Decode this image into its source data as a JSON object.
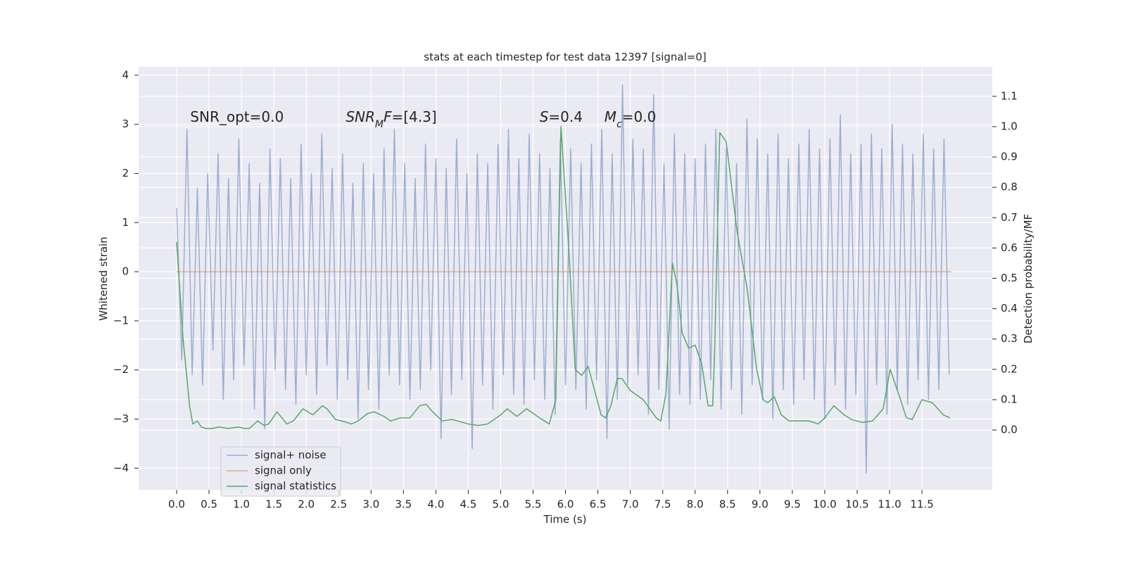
{
  "chart_data": {
    "type": "line",
    "title": "stats at each timestep for test data 12397 [signal=0]",
    "xlabel": "Time (s)",
    "ylabel": "Whitened strain",
    "y2label": "Detection probability/MF",
    "xlim": [
      -0.586,
      12.585
    ],
    "ylim": [
      -4.44,
      4.17
    ],
    "y2lim": [
      -0.197,
      1.197
    ],
    "xticks": [
      {
        "value": 0,
        "label": "0.0"
      },
      0.5,
      {
        "value": 1,
        "label": "1.0"
      },
      1.5,
      {
        "value": 2,
        "label": "2.0"
      },
      2.5,
      {
        "value": 3,
        "label": "3.0"
      },
      3.5,
      {
        "value": 4,
        "label": "4.0"
      },
      4.5,
      {
        "value": 5,
        "label": "5.0"
      },
      5.5,
      {
        "value": 6,
        "label": "6.0"
      },
      6.5,
      {
        "value": 7,
        "label": "7.0"
      },
      7.5,
      {
        "value": 8,
        "label": "8.0"
      },
      8.5,
      {
        "value": 9,
        "label": "9.0"
      },
      9.5,
      {
        "value": 10,
        "label": "10.0"
      },
      10.5,
      {
        "value": 11,
        "label": "11.0"
      },
      11.5
    ],
    "yticks": [
      {
        "value": -4,
        "label": "−4"
      },
      {
        "value": -3,
        "label": "−3"
      },
      {
        "value": -2,
        "label": "−2"
      },
      {
        "value": -1,
        "label": "−1"
      },
      0,
      1,
      2,
      3,
      4
    ],
    "y2ticks": [
      {
        "value": 0,
        "label": "0.0"
      },
      0.1,
      0.2,
      0.3,
      0.4,
      0.5,
      0.6,
      0.7,
      0.8,
      0.9,
      {
        "value": 1,
        "label": "1.0"
      },
      1.1
    ],
    "grid": true,
    "legend": "lower left",
    "annotations": [
      {
        "x": 0.21,
        "y": 3.05,
        "parts": [
          {
            "text": "SNR_opt=0.0"
          }
        ]
      },
      {
        "x": 2.61,
        "y": 3.05,
        "parts": [
          {
            "text": "SNR",
            "italic": true
          },
          {
            "text": "M",
            "italic": true,
            "sub": true
          },
          {
            "text": "F",
            "italic": true
          },
          {
            "text": "=[4.3]"
          }
        ]
      },
      {
        "x": 5.6,
        "y": 3.05,
        "parts": [
          {
            "text": "S",
            "italic": true
          },
          {
            "text": "=0.4"
          }
        ]
      },
      {
        "x": 6.6,
        "y": 3.05,
        "parts": [
          {
            "text": "M",
            "italic": true
          },
          {
            "text": "c",
            "italic": true,
            "sub": true
          },
          {
            "text": "=0.0"
          }
        ]
      }
    ],
    "series": [
      {
        "name": "signal+ noise",
        "color": "#4c72b0",
        "alpha": 0.5,
        "axis": "y",
        "x": [
          0,
          0.08,
          0.16,
          0.24,
          0.32,
          0.4,
          0.48,
          0.56,
          0.64,
          0.72,
          0.8,
          0.88,
          0.96,
          1.04,
          1.12,
          1.2,
          1.28,
          1.36,
          1.44,
          1.52,
          1.6,
          1.68,
          1.76,
          1.84,
          1.92,
          2,
          2.08,
          2.16,
          2.24,
          2.32,
          2.4,
          2.48,
          2.56,
          2.64,
          2.72,
          2.8,
          2.88,
          2.96,
          3.04,
          3.12,
          3.2,
          3.28,
          3.36,
          3.44,
          3.52,
          3.6,
          3.68,
          3.76,
          3.84,
          3.92,
          4,
          4.08,
          4.16,
          4.24,
          4.32,
          4.4,
          4.48,
          4.56,
          4.64,
          4.72,
          4.8,
          4.88,
          4.96,
          5.04,
          5.12,
          5.2,
          5.28,
          5.36,
          5.44,
          5.52,
          5.6,
          5.68,
          5.76,
          5.84,
          5.92,
          6,
          6.08,
          6.16,
          6.24,
          6.32,
          6.4,
          6.48,
          6.56,
          6.64,
          6.72,
          6.8,
          6.88,
          6.96,
          7.04,
          7.12,
          7.2,
          7.28,
          7.36,
          7.44,
          7.52,
          7.6,
          7.68,
          7.76,
          7.84,
          7.92,
          8,
          8.08,
          8.16,
          8.24,
          8.32,
          8.4,
          8.48,
          8.56,
          8.64,
          8.72,
          8.8,
          8.88,
          8.96,
          9.04,
          9.12,
          9.2,
          9.28,
          9.36,
          9.44,
          9.52,
          9.6,
          9.68,
          9.76,
          9.84,
          9.92,
          10,
          10.08,
          10.16,
          10.24,
          10.32,
          10.4,
          10.48,
          10.56,
          10.64,
          10.72,
          10.8,
          10.88,
          10.96,
          11.04,
          11.12,
          11.2,
          11.28,
          11.36,
          11.44,
          11.52,
          11.6,
          11.68,
          11.76,
          11.84,
          11.92
        ],
        "values": [
          1.3,
          -1.8,
          2.9,
          -2.1,
          1.7,
          -2.3,
          2.0,
          -1.6,
          2.4,
          -2.6,
          1.9,
          -2.2,
          2.7,
          -1.9,
          2.2,
          -2.8,
          1.8,
          -3.2,
          2.5,
          -2.0,
          2.3,
          -2.4,
          1.9,
          -2.7,
          2.6,
          -2.1,
          2.0,
          -2.5,
          2.8,
          -1.9,
          2.1,
          -2.6,
          2.4,
          -2.2,
          1.8,
          -3.0,
          2.2,
          -2.4,
          2.0,
          -2.8,
          2.5,
          -2.1,
          2.9,
          -2.3,
          2.2,
          -2.6,
          1.9,
          -2.4,
          2.6,
          -2.0,
          2.3,
          -3.4,
          2.1,
          -2.5,
          2.7,
          -2.2,
          2.0,
          -3.6,
          2.4,
          -2.3,
          2.2,
          -2.8,
          2.6,
          -2.1,
          2.9,
          -2.5,
          2.3,
          -2.7,
          2.8,
          -2.2,
          2.4,
          -2.6,
          2.1,
          -2.9,
          2.7,
          -2.3,
          2.5,
          -2.4,
          2.2,
          -2.8,
          2.6,
          -2.2,
          2.9,
          -3.4,
          2.4,
          -2.6,
          3.8,
          -2.3,
          2.7,
          -2.1,
          2.5,
          -2.9,
          3.6,
          -2.4,
          2.2,
          -3.2,
          2.8,
          -2.5,
          2.4,
          -2.7,
          2.3,
          -2.6,
          2.6,
          -2.2,
          2.9,
          -2.8,
          2.5,
          -2.4,
          2.2,
          -2.9,
          3.1,
          -2.3,
          2.7,
          -2.6,
          2.4,
          -3.0,
          2.8,
          -2.4,
          2.3,
          -2.7,
          2.6,
          -2.2,
          2.9,
          -2.6,
          2.5,
          -3.0,
          2.7,
          -2.3,
          3.2,
          -2.8,
          2.4,
          -2.5,
          2.6,
          -4.1,
          2.8,
          -2.3,
          2.5,
          -2.9,
          3.0,
          -2.4,
          2.6,
          -2.7,
          2.4,
          -2.2,
          2.8,
          -2.6,
          2.5,
          -2.4,
          2.7,
          -2.1
        ]
      },
      {
        "name": "signal only",
        "color": "#dd8452",
        "alpha": 0.6,
        "axis": "y",
        "x": [
          0,
          11.95
        ],
        "values": [
          0,
          0
        ]
      },
      {
        "name": "signal statistics",
        "color": "#55a868",
        "alpha": 1,
        "axis": "y2",
        "x": [
          0,
          0.1,
          0.2,
          0.25,
          0.32,
          0.38,
          0.45,
          0.55,
          0.65,
          0.8,
          0.95,
          1.05,
          1.12,
          1.25,
          1.35,
          1.42,
          1.55,
          1.7,
          1.8,
          1.95,
          2.1,
          2.25,
          2.32,
          2.45,
          2.55,
          2.7,
          2.8,
          2.95,
          3.05,
          3.2,
          3.3,
          3.45,
          3.6,
          3.75,
          3.85,
          3.95,
          4.1,
          4.25,
          4.5,
          4.65,
          4.8,
          5.0,
          5.1,
          5.25,
          5.4,
          5.6,
          5.75,
          5.85,
          5.93,
          6.05,
          6.15,
          6.25,
          6.35,
          6.45,
          6.55,
          6.62,
          6.7,
          6.8,
          6.87,
          7.0,
          7.2,
          7.4,
          7.47,
          7.55,
          7.65,
          7.72,
          7.8,
          7.9,
          8.0,
          8.1,
          8.2,
          8.27,
          8.3,
          8.38,
          8.48,
          8.65,
          8.8,
          8.95,
          9.05,
          9.12,
          9.22,
          9.33,
          9.45,
          9.6,
          9.76,
          9.9,
          10.0,
          10.14,
          10.3,
          10.41,
          10.58,
          10.74,
          10.9,
          11.01,
          11.17,
          11.26,
          11.35,
          11.5,
          11.66,
          11.83,
          11.93
        ],
        "values": [
          0.62,
          0.3,
          0.08,
          0.02,
          0.03,
          0.01,
          0.005,
          0.005,
          0.01,
          0.005,
          0.01,
          0.005,
          0.005,
          0.03,
          0.015,
          0.02,
          0.06,
          0.02,
          0.03,
          0.07,
          0.05,
          0.08,
          0.07,
          0.035,
          0.03,
          0.02,
          0.03,
          0.055,
          0.06,
          0.045,
          0.03,
          0.04,
          0.04,
          0.08,
          0.085,
          0.06,
          0.03,
          0.035,
          0.02,
          0.015,
          0.02,
          0.05,
          0.07,
          0.045,
          0.07,
          0.04,
          0.02,
          0.1,
          1.0,
          0.6,
          0.2,
          0.18,
          0.21,
          0.13,
          0.05,
          0.04,
          0.08,
          0.17,
          0.17,
          0.13,
          0.1,
          0.04,
          0.03,
          0.12,
          0.55,
          0.48,
          0.32,
          0.27,
          0.28,
          0.22,
          0.08,
          0.08,
          0.25,
          0.98,
          0.95,
          0.65,
          0.47,
          0.2,
          0.1,
          0.09,
          0.11,
          0.05,
          0.03,
          0.03,
          0.03,
          0.02,
          0.04,
          0.08,
          0.05,
          0.035,
          0.025,
          0.03,
          0.07,
          0.2,
          0.1,
          0.04,
          0.035,
          0.1,
          0.09,
          0.05,
          0.04
        ]
      }
    ]
  }
}
